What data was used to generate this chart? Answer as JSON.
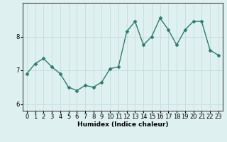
{
  "x": [
    0,
    1,
    2,
    3,
    4,
    5,
    6,
    7,
    8,
    9,
    10,
    11,
    12,
    13,
    14,
    15,
    16,
    17,
    18,
    19,
    20,
    21,
    22,
    23
  ],
  "y": [
    6.9,
    7.2,
    7.35,
    7.1,
    6.9,
    6.5,
    6.4,
    6.55,
    6.5,
    6.65,
    7.05,
    7.1,
    8.15,
    8.45,
    7.75,
    8.0,
    8.55,
    8.2,
    7.75,
    8.2,
    8.45,
    8.45,
    7.6,
    7.45
  ],
  "xlabel": "Humidex (Indice chaleur)",
  "ylabel": "",
  "ylim": [
    5.8,
    9.0
  ],
  "xlim": [
    -0.5,
    23.5
  ],
  "yticks": [
    6,
    7,
    8
  ],
  "xticks": [
    0,
    1,
    2,
    3,
    4,
    5,
    6,
    7,
    8,
    9,
    10,
    11,
    12,
    13,
    14,
    15,
    16,
    17,
    18,
    19,
    20,
    21,
    22,
    23
  ],
  "line_color": "#2d7d6e",
  "marker": "D",
  "marker_size": 2.5,
  "line_width": 1.0,
  "bg_color": "#dff0f0",
  "grid_color": "#c0d8d8",
  "label_fontsize": 6.5,
  "tick_fontsize": 6.0
}
